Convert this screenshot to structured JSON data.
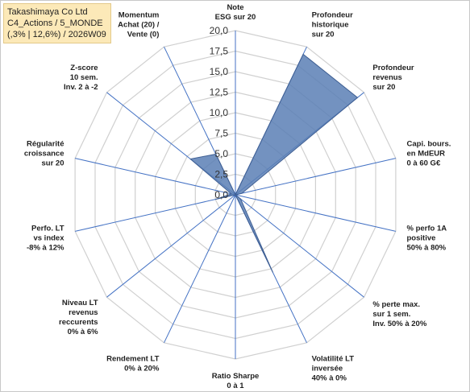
{
  "header": {
    "lines": [
      "Takashimaya Co Ltd",
      "C4_Actions / 5_MONDE",
      "(,3% | 12,6%) / 2026W09"
    ]
  },
  "chart_data": {
    "type": "radar",
    "rmin": 0,
    "rmax": 20,
    "ticks": [
      "0,0",
      "2,5",
      "5,0",
      "7,5",
      "10,0",
      "12,5",
      "15,0",
      "17,5",
      "20,0"
    ],
    "axes": [
      {
        "label": [
          "Note",
          "ESG sur 20"
        ],
        "value": 0.0
      },
      {
        "label": [
          "Profondeur",
          "historique",
          "sur 20"
        ],
        "value": 19.0
      },
      {
        "label": [
          "Profondeur",
          "revenus",
          "sur 20"
        ],
        "value": 19.0
      },
      {
        "label": [
          "Capi. bours.",
          "en MdEUR",
          "0 à 60 G€"
        ],
        "value": 0.8
      },
      {
        "label": [
          "% perfo 1A",
          "positive",
          "50% à 80%"
        ],
        "value": 0.0
      },
      {
        "label": [
          "% perte max.",
          "sur 1 sem.",
          "Inv. 50% à 20%"
        ],
        "value": 0.8
      },
      {
        "label": [
          "Volatilité LT",
          "inversée",
          "40% à 0%"
        ],
        "value": 10.5
      },
      {
        "label": [
          "Ratio Sharpe",
          "0 à 1"
        ],
        "value": 0.0
      },
      {
        "label": [
          "Rendement LT",
          "0% à 20%"
        ],
        "value": 0.0
      },
      {
        "label": [
          "Niveau LT",
          "revenus",
          "reccurents",
          "0% à 6%"
        ],
        "value": 0.0
      },
      {
        "label": [
          "Perfo. LT",
          "vs index",
          "-8% à 12%"
        ],
        "value": 2.5
      },
      {
        "label": [
          "Régularité",
          "croissance",
          "sur 20"
        ],
        "value": 0.5
      },
      {
        "label": [
          "Z-score",
          "10 sem.",
          "Inv. 2 à -2"
        ],
        "value": 7.0
      },
      {
        "label": [
          "Momentum",
          "Achat (20) /",
          "Vente (0)"
        ],
        "value": 5.5
      }
    ],
    "colors": {
      "fill": "#5b7fb5",
      "stroke": "#3f5f93",
      "spoke": "#4472c4",
      "grid": "#d0d0d0"
    },
    "grid": true
  }
}
